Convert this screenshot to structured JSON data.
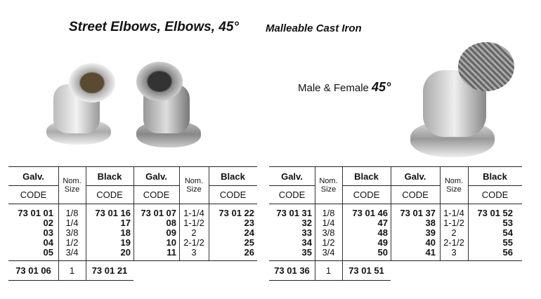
{
  "title": {
    "main": "Street Elbows, Elbows, 45°",
    "sub": "Malleable Cast Iron",
    "male_female": "Male & Female",
    "angle": "45°"
  },
  "header": {
    "galv": "Galv.",
    "black": "Black",
    "code": "CODE",
    "nom": "Nom.",
    "size": "Size"
  },
  "left": {
    "galv1": [
      "73 01 01",
      "02",
      "03",
      "04",
      "05"
    ],
    "size1": [
      "1/8",
      "1/4",
      "3/8",
      "1/2",
      "3/4"
    ],
    "black1": [
      "73 01 16",
      "17",
      "18",
      "19",
      "20"
    ],
    "galv2": [
      "73 01 07",
      "08",
      "09",
      "10",
      "11"
    ],
    "size2": [
      "1-1/4",
      "1-1/2",
      "2",
      "2-1/2",
      "3"
    ],
    "black2": [
      "73 01 22",
      "23",
      "24",
      "25",
      "26"
    ],
    "extra": {
      "galv": "73 01 06",
      "size": "1",
      "black": "73 01 21"
    }
  },
  "right": {
    "galv1": [
      "73 01 31",
      "32",
      "33",
      "34",
      "35"
    ],
    "size1": [
      "1/8",
      "1/4",
      "3/8",
      "1/2",
      "3/4"
    ],
    "black1": [
      "73 01 46",
      "47",
      "48",
      "49",
      "50"
    ],
    "galv2": [
      "73 01 37",
      "38",
      "39",
      "40",
      "41"
    ],
    "size2": [
      "1-1/4",
      "1-1/2",
      "2",
      "2-1/2",
      "3"
    ],
    "black2": [
      "73 01 52",
      "53",
      "54",
      "55",
      "56"
    ],
    "extra": {
      "galv": "73 01 36",
      "size": "1",
      "black": "73 01 51"
    }
  }
}
